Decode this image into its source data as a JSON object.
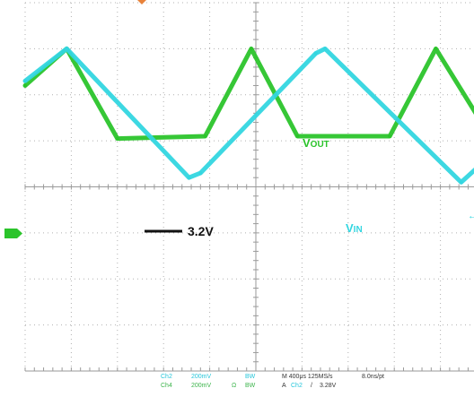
{
  "chart_data": {
    "type": "line",
    "title": "",
    "xlabel": "",
    "ylabel": "",
    "grid": true,
    "x_divisions": 10,
    "y_divisions": 8,
    "xlim": [
      0,
      10
    ],
    "ylim": [
      -4,
      4
    ],
    "series": [
      {
        "name": "VIN",
        "label_text": "VIN",
        "channel": "Ch2",
        "color": "#33d6e0",
        "x": [
          0,
          0.9,
          3.55,
          3.8,
          6.3,
          6.5,
          9.45,
          10
        ],
        "y": [
          2.3,
          3.0,
          0.2,
          0.3,
          2.9,
          3.0,
          0.1,
          0.6
        ]
      },
      {
        "name": "VOUT",
        "label_text": "VOUT",
        "channel": "Ch4",
        "color": "#2bc42b",
        "x": [
          0,
          0.9,
          2.0,
          3.9,
          4.9,
          5.9,
          7.9,
          8.9,
          9.95
        ],
        "y": [
          2.2,
          3.0,
          1.05,
          1.1,
          3.0,
          1.1,
          1.1,
          3.0,
          1.3
        ]
      }
    ],
    "annotations": [
      {
        "text": "3.2V"
      }
    ],
    "ground_marker_channel": "Ch4",
    "trigger_marker": "triangle"
  },
  "status_bar": {
    "ch2_label": "Ch2",
    "ch2_scale": "200mV",
    "ch2_bw": "BW",
    "ch4_label": "Ch4",
    "ch4_scale": "200mV",
    "ch4_impedance": "Ω",
    "ch4_bw": "BW",
    "horizontal": "M 400μs 125MS/s",
    "record": "8.0ns/pt",
    "trigger_prefix": "A",
    "trigger_channel": "Ch2",
    "trigger_slope": "/",
    "trigger_level": "3.28V"
  }
}
